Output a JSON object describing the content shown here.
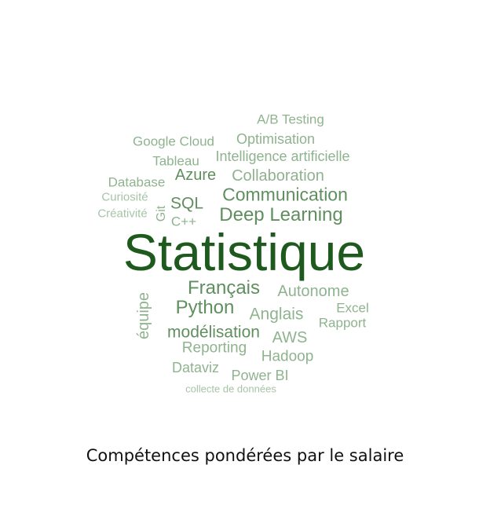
{
  "caption": "Compétences pondérées par le salaire",
  "colors": {
    "dark": "#1e5a1e",
    "medium": "#5f8f5f",
    "light": "#8fb38f",
    "lighter": "#a7c4a7"
  },
  "words": [
    {
      "text": "Statistique",
      "tone": "dark"
    },
    {
      "text": "A/B Testing",
      "tone": "light"
    },
    {
      "text": "Google Cloud",
      "tone": "light"
    },
    {
      "text": "Optimisation",
      "tone": "light"
    },
    {
      "text": "Tableau",
      "tone": "light"
    },
    {
      "text": "Intelligence artificielle",
      "tone": "light"
    },
    {
      "text": "Database",
      "tone": "light"
    },
    {
      "text": "Azure",
      "tone": "medium"
    },
    {
      "text": "Collaboration",
      "tone": "light"
    },
    {
      "text": "Curiosité",
      "tone": "lighter"
    },
    {
      "text": "Communication",
      "tone": "medium"
    },
    {
      "text": "SQL",
      "tone": "medium"
    },
    {
      "text": "Git",
      "tone": "light"
    },
    {
      "text": "Créativité",
      "tone": "lighter"
    },
    {
      "text": "C++",
      "tone": "light"
    },
    {
      "text": "Deep Learning",
      "tone": "medium"
    },
    {
      "text": "Français",
      "tone": "medium"
    },
    {
      "text": "Autonome",
      "tone": "light"
    },
    {
      "text": "équipe",
      "tone": "light"
    },
    {
      "text": "Python",
      "tone": "medium"
    },
    {
      "text": "Excel",
      "tone": "light"
    },
    {
      "text": "Anglais",
      "tone": "light"
    },
    {
      "text": "Rapport",
      "tone": "light"
    },
    {
      "text": "modélisation",
      "tone": "medium"
    },
    {
      "text": "AWS",
      "tone": "light"
    },
    {
      "text": "Reporting",
      "tone": "light"
    },
    {
      "text": "Hadoop",
      "tone": "light"
    },
    {
      "text": "Dataviz",
      "tone": "light"
    },
    {
      "text": "Power BI",
      "tone": "light"
    },
    {
      "text": "collecte de données",
      "tone": "lighter"
    }
  ]
}
